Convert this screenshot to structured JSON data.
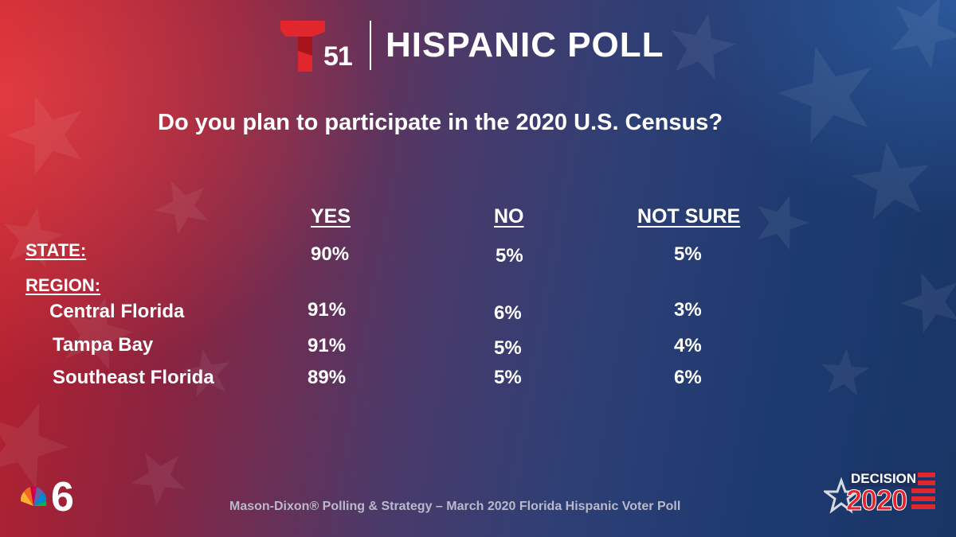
{
  "header": {
    "channel_number": "51",
    "title": "HISPANIC POLL"
  },
  "question": "Do you plan to participate in the 2020 U.S. Census?",
  "columns": [
    "YES",
    "NO",
    "NOT SURE"
  ],
  "state": {
    "label": "STATE:",
    "values": [
      "90%",
      "5%",
      "5%"
    ]
  },
  "region": {
    "label": "REGION:",
    "rows": [
      {
        "name": "Central Florida",
        "values": [
          "91%",
          "6%",
          "3%"
        ]
      },
      {
        "name": "Tampa Bay",
        "values": [
          "91%",
          "5%",
          "4%"
        ]
      },
      {
        "name": "Southeast Florida",
        "values": [
          "89%",
          "5%",
          "6%"
        ]
      }
    ]
  },
  "footer": "Mason-Dixon® Polling & Strategy – March 2020 Florida Hispanic Voter Poll",
  "badge": {
    "word": "DECISION",
    "year": "2020"
  },
  "colors": {
    "telemundo_red": "#e1262d",
    "footer_text": "#b9b9c9"
  },
  "icons": [
    "telemundo-logo-icon",
    "nbc-peacock-icon",
    "decision-2020-star-icon"
  ]
}
